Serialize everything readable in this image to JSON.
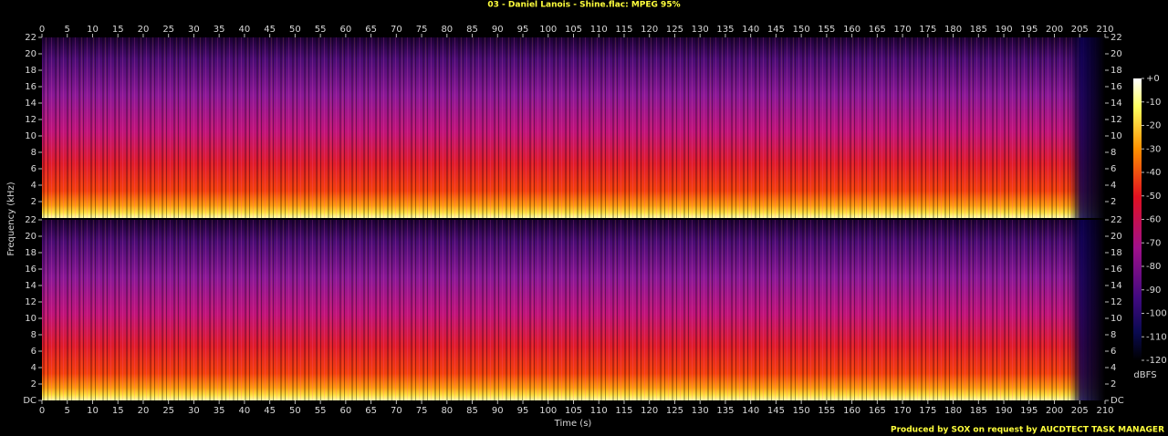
{
  "chart_data": {
    "type": "spectrogram",
    "title": "03 - Daniel Lanois - Shine.flac: MPEG 95%",
    "x_label": "Time (s)",
    "y_label": "Frequency (kHz)",
    "xlim": [
      0,
      210
    ],
    "xticks": [
      0,
      5,
      10,
      15,
      20,
      25,
      30,
      35,
      40,
      45,
      50,
      55,
      60,
      65,
      70,
      75,
      80,
      85,
      90,
      95,
      100,
      105,
      110,
      115,
      120,
      125,
      130,
      135,
      140,
      145,
      150,
      155,
      160,
      165,
      170,
      175,
      180,
      185,
      190,
      195,
      200,
      205,
      210
    ],
    "channels": [
      {
        "ylim": [
          0,
          22
        ],
        "yticks": [
          2,
          4,
          6,
          8,
          10,
          12,
          14,
          16,
          18,
          20,
          22
        ]
      },
      {
        "ylim": [
          0,
          22
        ],
        "yticks": [
          {
            "value": 0,
            "label": "DC"
          },
          2,
          4,
          6,
          8,
          10,
          12,
          14,
          16,
          18,
          20,
          22
        ]
      }
    ],
    "colorbar": {
      "label": "dBFS",
      "lim": [
        -120,
        0
      ],
      "ticks": [
        {
          "value": 0,
          "label": "+0"
        },
        -10,
        -20,
        -30,
        -40,
        -50,
        -60,
        -70,
        -80,
        -90,
        -100,
        -110,
        -120
      ]
    },
    "footer": "Produced by SOX on request by AUCDTECT TASK MANAGER"
  }
}
